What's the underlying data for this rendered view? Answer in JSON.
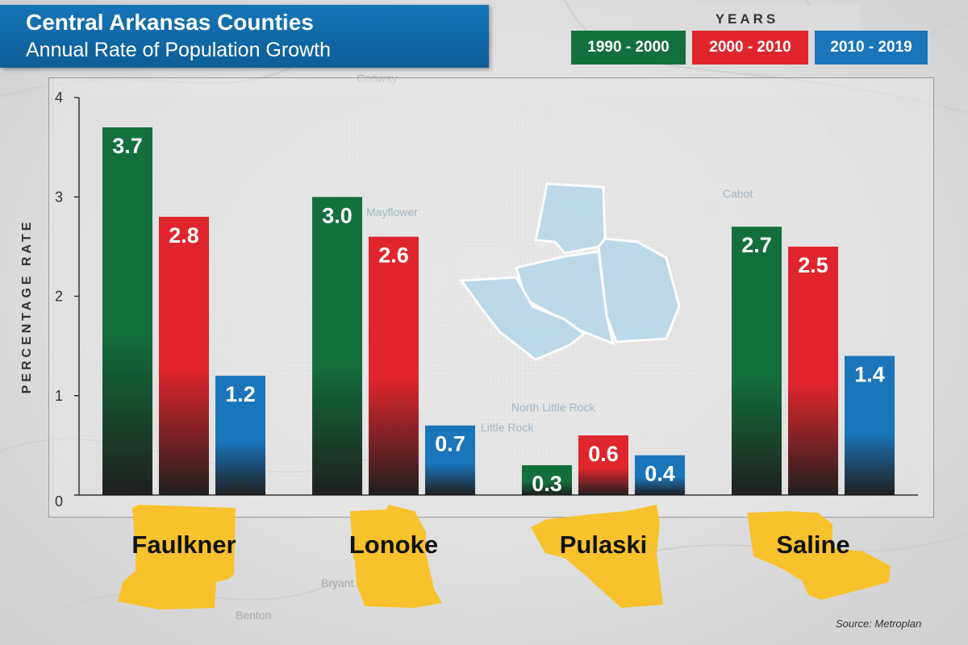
{
  "header": {
    "title": "Central Arkansas Counties",
    "subtitle": "Annual Rate of Population Growth"
  },
  "legend": {
    "title": "YEARS",
    "items": [
      {
        "label": "1990 - 2000",
        "color": "#13703d"
      },
      {
        "label": "2000 - 2010",
        "color": "#e0252d"
      },
      {
        "label": "2010 - 2019",
        "color": "#1a75bb"
      }
    ]
  },
  "map_labels": [
    "Conway",
    "Mayflower",
    "Cabot",
    "Little Rock",
    "North Little Rock",
    "Benton",
    "Bryant"
  ],
  "source": "Source: Metroplan",
  "accent_color": "#f8c22d",
  "chart_data": {
    "type": "bar",
    "categories": [
      "Faulkner",
      "Lonoke",
      "Pulaski",
      "Saline"
    ],
    "series": [
      {
        "name": "1990 - 2000",
        "values": [
          3.7,
          3.0,
          0.3,
          2.7
        ]
      },
      {
        "name": "2000 - 2010",
        "values": [
          2.8,
          2.6,
          0.6,
          2.5
        ]
      },
      {
        "name": "2010 - 2019",
        "values": [
          1.2,
          0.7,
          0.4,
          1.4
        ]
      }
    ],
    "title": "Central Arkansas Counties",
    "subtitle": "Annual Rate of Population Growth",
    "ylabel": "PERCENTAGE RATE",
    "xlabel": "",
    "ylim": [
      0,
      4
    ],
    "yticks": [
      "0",
      "1",
      "2",
      "3",
      "4"
    ],
    "grid": true,
    "legend_position": "top-right"
  }
}
